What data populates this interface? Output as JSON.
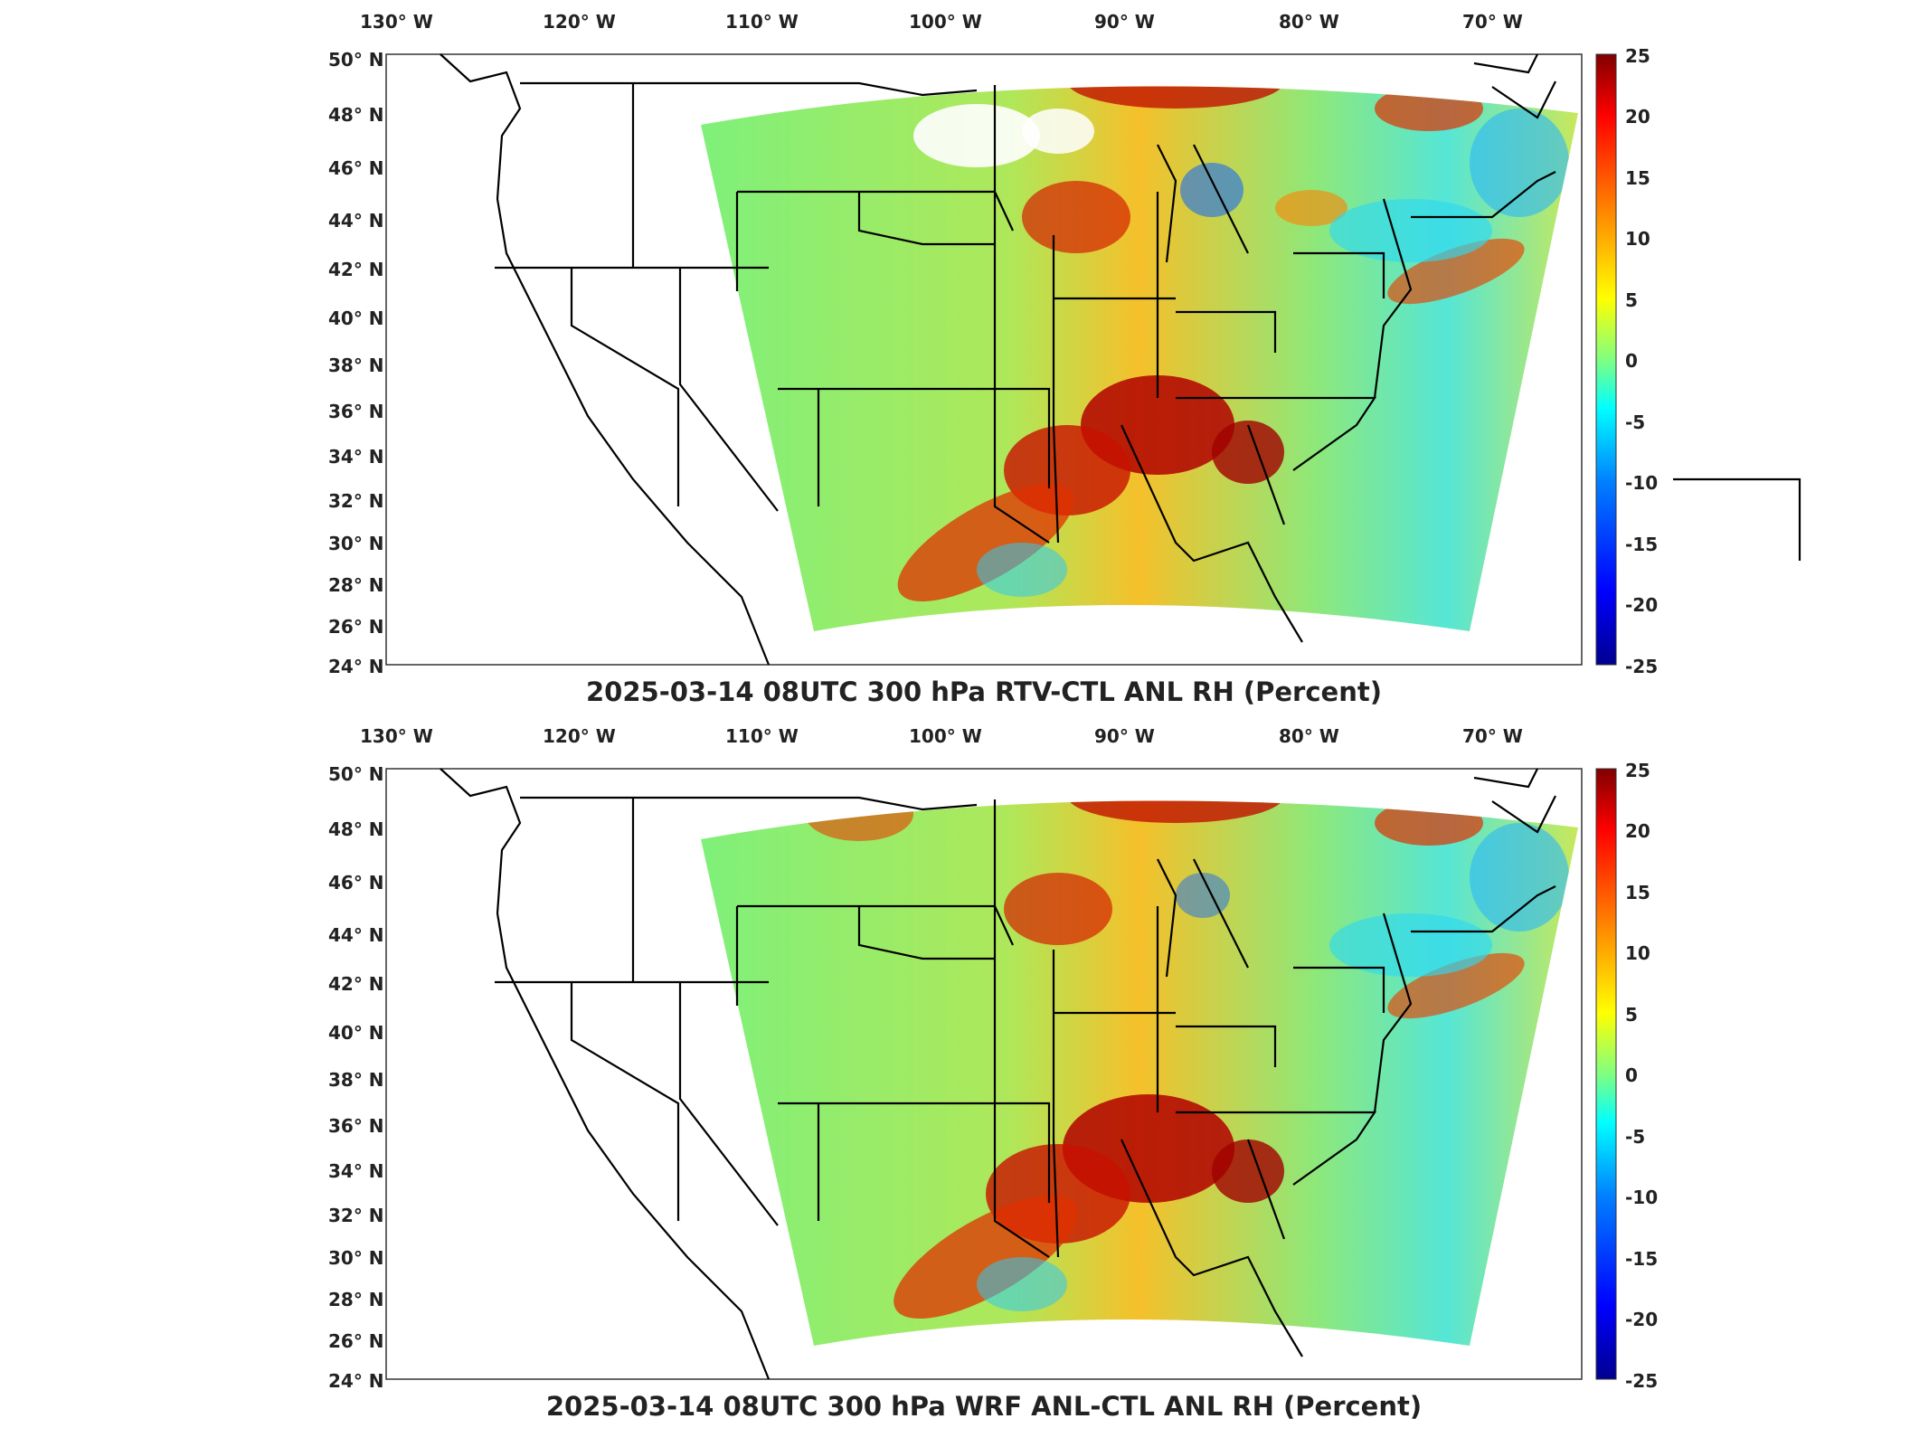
{
  "panels": [
    {
      "title": "2025-03-14 08UTC 300 hPa RTV-CTL ANL RH (Percent)",
      "lon_labels": [
        "130° W",
        "120° W",
        "110° W",
        "100° W",
        "90° W",
        "80° W",
        "70° W"
      ],
      "lat_labels": [
        "50° N",
        "48° N",
        "46° N",
        "44° N",
        "42° N",
        "40° N",
        "38° N",
        "36° N",
        "34° N",
        "32° N",
        "30° N",
        "28° N",
        "26° N",
        "24° N"
      ],
      "colorbar_ticks": [
        "25",
        "20",
        "15",
        "10",
        "5",
        "0",
        "-5",
        "-10",
        "-15",
        "-20",
        "-25"
      ]
    },
    {
      "title": "2025-03-14 08UTC 300 hPa WRF ANL-CTL ANL RH (Percent)",
      "lon_labels": [
        "130° W",
        "120° W",
        "110° W",
        "100° W",
        "90° W",
        "80° W",
        "70° W"
      ],
      "lat_labels": [
        "50° N",
        "48° N",
        "46° N",
        "44° N",
        "42° N",
        "40° N",
        "38° N",
        "36° N",
        "34° N",
        "32° N",
        "30° N",
        "28° N",
        "26° N",
        "24° N"
      ],
      "colorbar_ticks": [
        "25",
        "20",
        "15",
        "10",
        "5",
        "0",
        "-5",
        "-10",
        "-15",
        "-20",
        "-25"
      ]
    }
  ],
  "colormap": [
    "#00008f",
    "#0000ff",
    "#0080ff",
    "#00ffff",
    "#80ff80",
    "#ffff00",
    "#ff8000",
    "#ff0000",
    "#800000"
  ],
  "colorbar_range": [
    -25,
    25
  ],
  "projection": "lambert-conformal",
  "grid": false
}
